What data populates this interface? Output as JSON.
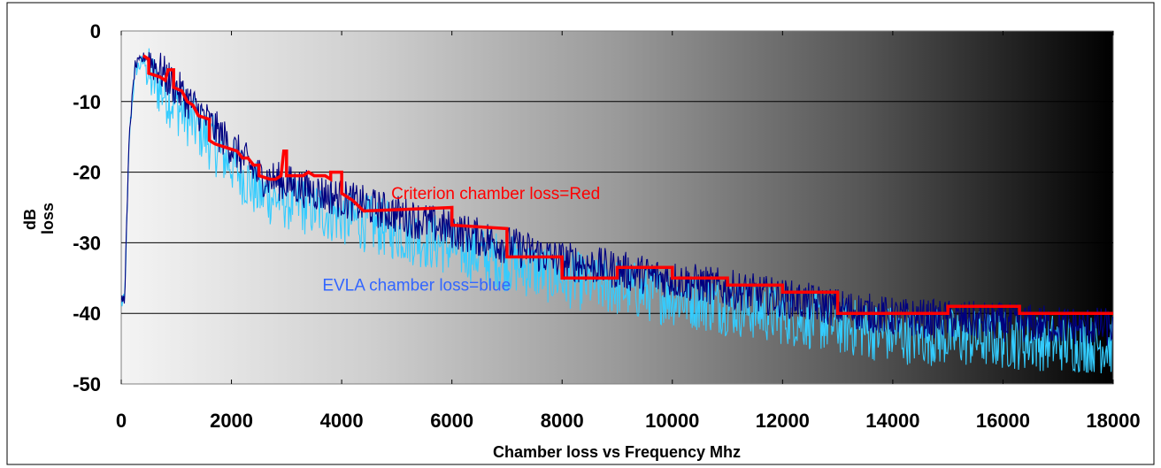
{
  "chart_data": {
    "type": "line",
    "xlabel": "Chamber loss vs Frequency Mhz",
    "ylabel_lines": [
      "dB",
      "loss"
    ],
    "xlim": [
      0,
      18000
    ],
    "ylim": [
      -50,
      0
    ],
    "x_ticks": [
      0,
      2000,
      4000,
      6000,
      8000,
      10000,
      12000,
      14000,
      16000,
      18000
    ],
    "y_ticks": [
      0,
      -10,
      -20,
      -30,
      -40,
      -50
    ],
    "grid": "horizontal",
    "background": "gradient light gray to black",
    "annotations": [
      {
        "text": "Criterion chamber loss=Red",
        "color": "#ff0000",
        "x": 4900,
        "y": -23.8
      },
      {
        "text": "EVLA chamber loss=blue",
        "color": "#3366ff",
        "x": 3650,
        "y": -36.8
      }
    ],
    "series": [
      {
        "color": "#ff0000",
        "style": "step",
        "points": [
          [
            400,
            -3.5
          ],
          [
            500,
            -4
          ],
          [
            500,
            -6
          ],
          [
            700,
            -6.5
          ],
          [
            800,
            -7
          ],
          [
            850,
            -5.5
          ],
          [
            950,
            -5.5
          ],
          [
            950,
            -8
          ],
          [
            1100,
            -8.5
          ],
          [
            1200,
            -10
          ],
          [
            1300,
            -10.5
          ],
          [
            1400,
            -12
          ],
          [
            1600,
            -12.5
          ],
          [
            1600,
            -15.5
          ],
          [
            1700,
            -16
          ],
          [
            1900,
            -16.5
          ],
          [
            2100,
            -17
          ],
          [
            2200,
            -18
          ],
          [
            2300,
            -18
          ],
          [
            2400,
            -19
          ],
          [
            2500,
            -19
          ],
          [
            2500,
            -20.5
          ],
          [
            2700,
            -21
          ],
          [
            2800,
            -21
          ],
          [
            2900,
            -20.5
          ],
          [
            2950,
            -17
          ],
          [
            3000,
            -17
          ],
          [
            3000,
            -20.5
          ],
          [
            3300,
            -20.5
          ],
          [
            3400,
            -20
          ],
          [
            3500,
            -20.5
          ],
          [
            3700,
            -20.5
          ],
          [
            3800,
            -21
          ],
          [
            3800,
            -20
          ],
          [
            4000,
            -20
          ],
          [
            4000,
            -23
          ],
          [
            4200,
            -24
          ],
          [
            4400,
            -25.5
          ],
          [
            6000,
            -25
          ],
          [
            6000,
            -27.5
          ],
          [
            7000,
            -28
          ],
          [
            7000,
            -32
          ],
          [
            8000,
            -32
          ],
          [
            8000,
            -35
          ],
          [
            9000,
            -35
          ],
          [
            9000,
            -33.5
          ],
          [
            10000,
            -33.5
          ],
          [
            10000,
            -35
          ],
          [
            11000,
            -35
          ],
          [
            11000,
            -36
          ],
          [
            12000,
            -36
          ],
          [
            12000,
            -37
          ],
          [
            13000,
            -37
          ],
          [
            13000,
            -40
          ],
          [
            15000,
            -40
          ],
          [
            15000,
            -39
          ],
          [
            16300,
            -39
          ],
          [
            16300,
            -40
          ],
          [
            18000,
            -40
          ]
        ]
      }
    ],
    "noise_series": [
      {
        "color": "#000080",
        "trend_offset": 0,
        "amplitude": 2.8
      },
      {
        "color": "#33ccff",
        "trend_offset": -2.5,
        "amplitude": 4.2
      }
    ]
  }
}
